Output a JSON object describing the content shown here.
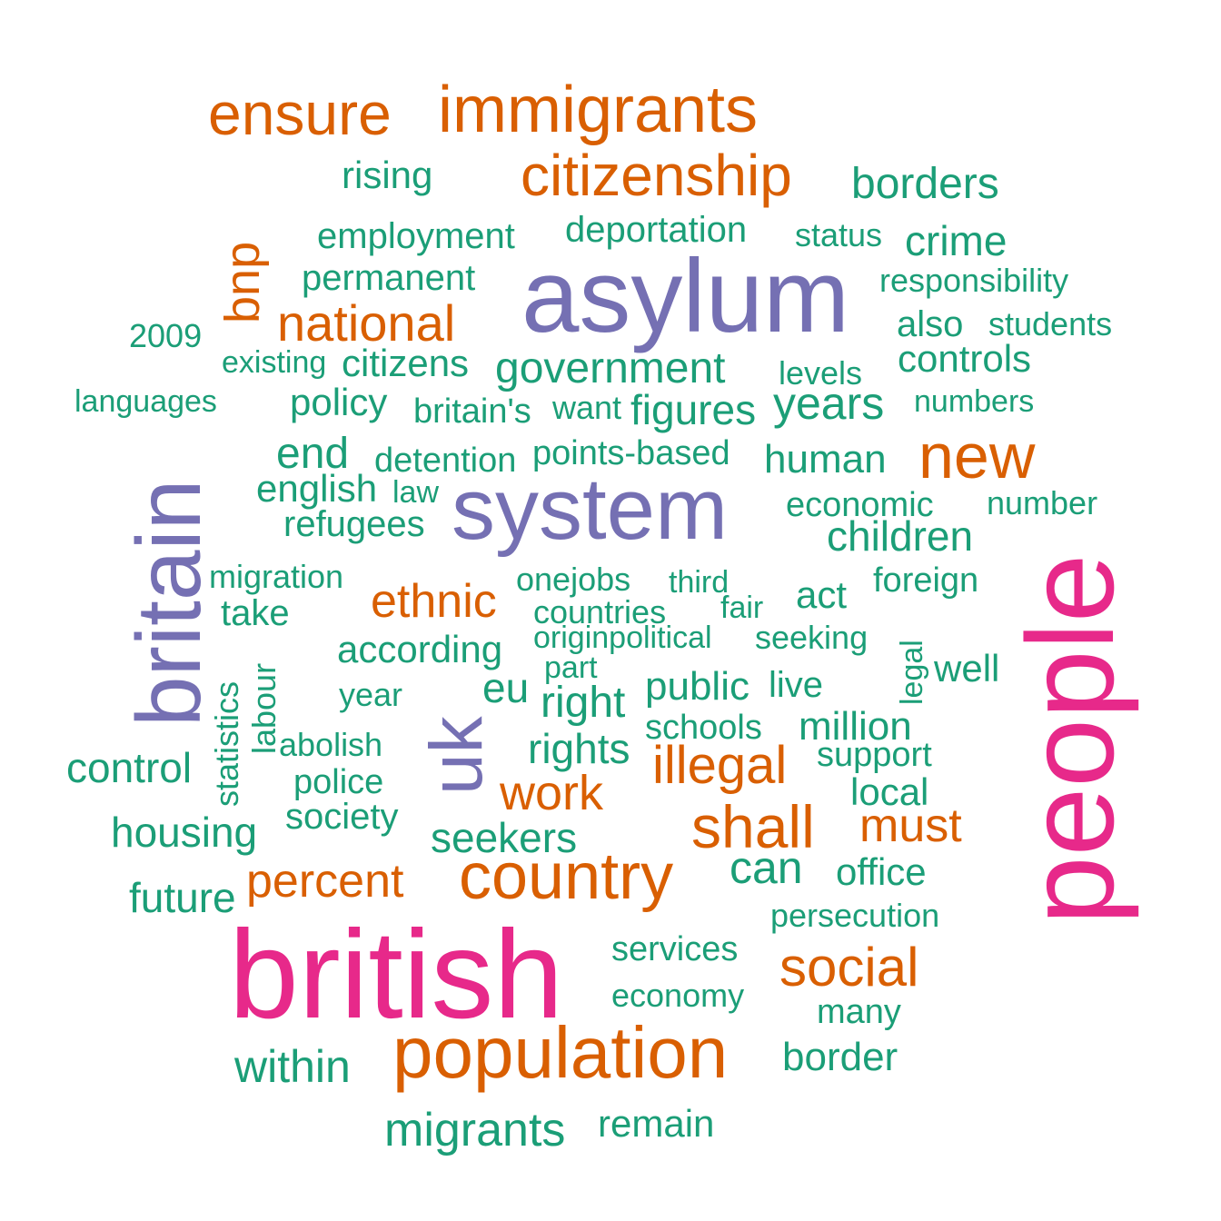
{
  "colors": {
    "green": "#1b9e77",
    "orange": "#d95f02",
    "purple": "#7570b3",
    "magenta": "#e7298a"
  },
  "words": {
    "british": "british",
    "people": "people",
    "asylum": "asylum",
    "system": "system",
    "britain": "britain",
    "uk": "uk",
    "population": "population",
    "country": "country",
    "immigrants": "immigrants",
    "ensure": "ensure",
    "citizenship": "citizenship",
    "national": "national",
    "new": "new",
    "shall": "shall",
    "social": "social",
    "illegal": "illegal",
    "work": "work",
    "ethnic": "ethnic",
    "percent": "percent",
    "must": "must",
    "bnp": "bnp",
    "rising": "rising",
    "borders": "borders",
    "employment": "employment",
    "deportation": "deportation",
    "status": "status",
    "crime": "crime",
    "permanent": "permanent",
    "responsibility": "responsibility",
    "2009": "2009",
    "also": "also",
    "students": "students",
    "existing": "existing",
    "citizens": "citizens",
    "government": "government",
    "levels": "levels",
    "controls": "controls",
    "languages": "languages",
    "policy": "policy",
    "britains": "britain's",
    "want": "want",
    "figures": "figures",
    "years": "years",
    "numbers": "numbers",
    "end": "end",
    "detention": "detention",
    "points_based": "points-based",
    "human": "human",
    "english": "english",
    "law": "law",
    "economic": "economic",
    "number": "number",
    "refugees": "refugees",
    "children": "children",
    "migration": "migration",
    "onejobs": "onejobs",
    "third": "third",
    "foreign": "foreign",
    "take": "take",
    "countries": "countries",
    "fair": "fair",
    "act": "act",
    "originpolitical": "originpolitical",
    "seeking": "seeking",
    "according": "according",
    "part": "part",
    "legal": "legal",
    "well": "well",
    "statistics": "statistics",
    "labour": "labour",
    "year": "year",
    "eu": "eu",
    "right": "right",
    "public": "public",
    "live": "live",
    "schools": "schools",
    "million": "million",
    "abolish": "abolish",
    "rights": "rights",
    "support": "support",
    "control": "control",
    "police": "police",
    "local": "local",
    "society": "society",
    "housing": "housing",
    "seekers": "seekers",
    "can": "can",
    "office": "office",
    "future": "future",
    "persecution": "persecution",
    "services": "services",
    "economy": "economy",
    "many": "many",
    "within": "within",
    "border": "border",
    "migrants": "migrants",
    "remain": "remain"
  }
}
